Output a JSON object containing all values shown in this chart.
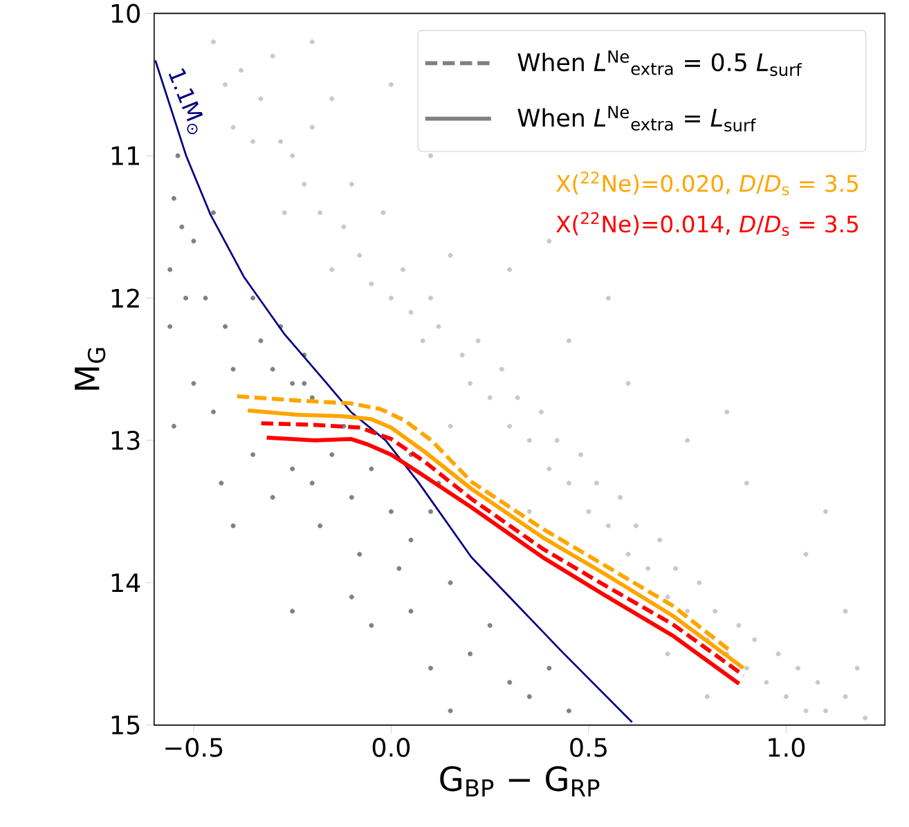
{
  "chart_data": {
    "type": "line",
    "xlabel": "G$_{BP}$ − G$_{RP}$",
    "ylabel": "M$_{G}$",
    "xlim": [
      -0.6,
      1.25
    ],
    "ylim": [
      15,
      10
    ],
    "xticks": [
      {
        "value": -0.5,
        "label": "−0.5"
      },
      {
        "value": 0,
        "label": "0.0"
      },
      0.5,
      {
        "value": 1.0,
        "label": "1.0"
      }
    ],
    "yticks": [
      10,
      11,
      12,
      13,
      14,
      15
    ],
    "grid": false,
    "legend": "top right",
    "annotations": [
      "When *L*$^{Ne}$$_{extra}$ = 0.5 *L*$_{surf}$",
      "When *L*$^{Ne}$$_{extra}$ = *L*$_{surf}$"
    ],
    "series": [
      {
        "type": "scatter",
        "marker": "circle",
        "color": "#c8c8c8",
        "x": [
          -0.45,
          -0.42,
          -0.38,
          -0.4,
          -0.35,
          -0.33,
          -0.3,
          -0.28,
          -0.25,
          -0.22,
          -0.27,
          -0.2,
          -0.15,
          -0.18,
          -0.12,
          -0.1,
          -0.08,
          -0.05,
          -0.15,
          -0.02,
          0.0,
          0.03,
          0.05,
          0.08,
          0.1,
          0.12,
          0.15,
          0.18,
          0.2,
          0.22,
          0.25,
          0.28,
          0.3,
          0.32,
          0.35,
          0.38,
          0.4,
          0.42,
          0.45,
          0.48,
          0.5,
          0.52,
          0.55,
          0.58,
          0.6,
          0.62,
          0.65,
          0.68,
          0.7,
          0.72,
          0.75,
          0.78,
          0.8,
          0.82,
          0.85,
          0.88,
          0.9,
          0.92,
          0.95,
          0.98,
          1.0,
          1.03,
          1.05,
          1.08,
          1.1,
          1.15,
          1.2,
          1.18,
          0.3,
          0.45,
          0.6,
          0.75,
          0.9,
          1.05,
          1.15,
          0.1,
          0.0,
          0.4,
          -0.2,
          0.55,
          0.85,
          1.1,
          0.15,
          0.35,
          0.55,
          0.7,
          0.8
        ],
        "values": [
          10.2,
          10.5,
          10.4,
          10.8,
          10.9,
          10.6,
          10.3,
          10.9,
          11.0,
          11.2,
          11.4,
          10.8,
          10.6,
          11.4,
          11.5,
          11.2,
          11.7,
          11.9,
          11.8,
          11.4,
          12.0,
          11.8,
          12.1,
          12.3,
          12.0,
          12.2,
          11.7,
          12.4,
          12.6,
          12.3,
          12.7,
          12.5,
          12.9,
          12.7,
          13.0,
          12.8,
          13.2,
          13.0,
          13.3,
          13.1,
          13.5,
          13.3,
          13.6,
          13.4,
          13.8,
          13.6,
          13.9,
          13.7,
          14.1,
          13.9,
          14.2,
          14.0,
          14.4,
          14.2,
          14.5,
          14.3,
          14.6,
          14.4,
          14.7,
          14.5,
          14.8,
          14.6,
          14.9,
          14.7,
          14.9,
          14.8,
          14.95,
          14.6,
          11.8,
          12.3,
          12.6,
          13.0,
          13.3,
          13.8,
          14.2,
          11.0,
          10.5,
          11.6,
          10.2,
          12.0,
          12.8,
          13.5,
          12.9,
          13.5,
          14.1,
          14.5,
          14.8
        ]
      },
      {
        "type": "scatter",
        "marker": "circle",
        "color": "#808080",
        "x": [
          -0.54,
          -0.55,
          -0.53,
          -0.5,
          -0.56,
          -0.52,
          -0.47,
          -0.45,
          -0.42,
          -0.56,
          -0.4,
          -0.35,
          -0.33,
          -0.3,
          -0.28,
          -0.25,
          -0.22,
          -0.5,
          -0.45,
          -0.55,
          -0.43,
          -0.2,
          -0.22,
          -0.35,
          -0.3,
          -0.25,
          -0.2,
          -0.15,
          -0.1,
          -0.05,
          0.0,
          -0.18,
          -0.08,
          0.05,
          0.1,
          -0.4,
          -0.25,
          -0.1,
          0.05,
          0.15,
          0.1,
          0.15,
          0.2,
          0.25,
          0.3,
          0.35,
          0.4,
          0.45,
          -0.05,
          0.02,
          -0.12,
          0.05,
          0.12
        ],
        "values": [
          11.0,
          11.3,
          11.5,
          11.6,
          11.8,
          12.0,
          12.0,
          11.4,
          12.2,
          12.2,
          12.5,
          12.0,
          12.3,
          12.5,
          12.2,
          12.6,
          12.4,
          12.6,
          12.8,
          12.9,
          13.3,
          12.7,
          12.6,
          13.1,
          13.4,
          13.2,
          13.3,
          13.1,
          13.4,
          13.2,
          13.5,
          13.6,
          13.8,
          13.7,
          13.5,
          13.6,
          14.2,
          14.1,
          14.2,
          14.0,
          14.6,
          14.9,
          14.5,
          14.3,
          14.7,
          14.8,
          14.6,
          14.9,
          14.3,
          13.9,
          12.9,
          13.1,
          13.3
        ]
      },
      {
        "name": "1.1M$_{⊙}$",
        "color": "#000080",
        "x": [
          -0.597,
          -0.519,
          -0.458,
          -0.373,
          -0.271,
          -0.169,
          -0.102,
          -0.014,
          0.068,
          0.203,
          0.431,
          0.61
        ],
        "values": [
          10.33,
          11.0,
          11.41,
          11.85,
          12.25,
          12.58,
          12.8,
          13.0,
          13.29,
          13.82,
          14.48,
          14.98
        ]
      },
      {
        "line_style": "dashed",
        "color": "#ffa500",
        "x": [
          -0.39,
          -0.237,
          -0.102,
          -0.027,
          0.034,
          0.102,
          0.203,
          0.383,
          0.542,
          0.712,
          0.864
        ],
        "values": [
          12.69,
          12.72,
          12.74,
          12.78,
          12.86,
          13.0,
          13.29,
          13.62,
          13.88,
          14.16,
          14.49
        ]
      },
      {
        "line_style": "solid",
        "name": "X($^{22}$Ne)=0.020, *D*/*D*$_{s}$ = 3.5",
        "color": "#ffa500",
        "x": [
          -0.363,
          -0.237,
          -0.125,
          -0.051,
          0,
          0.085,
          0.203,
          0.383,
          0.542,
          0.712,
          0.892
        ],
        "values": [
          12.79,
          12.82,
          12.83,
          12.85,
          12.91,
          13.08,
          13.34,
          13.68,
          13.94,
          14.23,
          14.6
        ]
      },
      {
        "line_style": "dashed",
        "color": "#ff0000",
        "x": [
          -0.329,
          -0.203,
          -0.078,
          0,
          0.085,
          0.203,
          0.383,
          0.542,
          0.712,
          0.892
        ],
        "values": [
          12.88,
          12.89,
          12.91,
          12.99,
          13.15,
          13.41,
          13.76,
          14.02,
          14.29,
          14.65
        ]
      },
      {
        "line_style": "solid",
        "name": "X($^{22}$Ne)=0.014, *D*/*D*$_{s}$ = 3.5",
        "color": "#ff0000",
        "x": [
          -0.315,
          -0.193,
          -0.102,
          -0.058,
          0.0,
          0.078,
          0.203,
          0.383,
          0.542,
          0.712,
          0.881
        ],
        "values": [
          12.98,
          13.0,
          12.99,
          13.03,
          13.1,
          13.24,
          13.47,
          13.82,
          14.09,
          14.37,
          14.71
        ]
      }
    ]
  }
}
